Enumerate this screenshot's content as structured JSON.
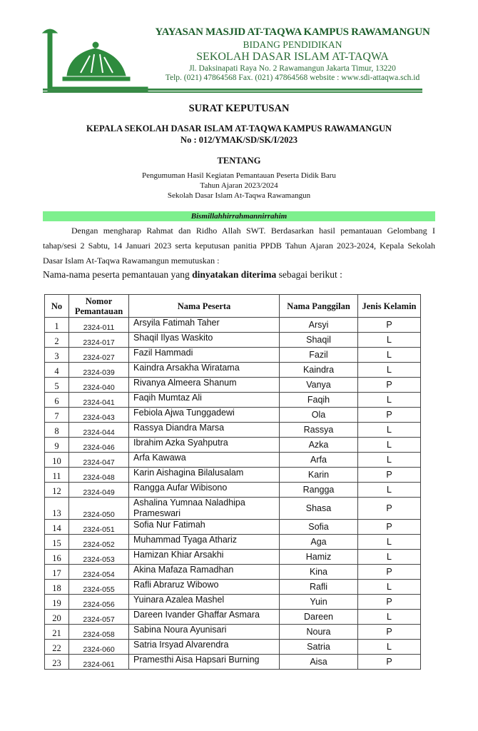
{
  "letterhead": {
    "line1": "YAYASAN MASJID AT-TAQWA KAMPUS RAWAMANGUN",
    "line2": "BIDANG PENDIDIKAN",
    "line3": "SEKOLAH DASAR ISLAM AT-TAQWA",
    "address": "Jl. Daksinapati Raya No. 2 Rawamangun Jakarta Timur, 13220",
    "contact": "Telp. (021) 47864568 Fax. (021) 47864568 website : www.sdi-attaqwa.sch.id",
    "logo_color": "#2e8b3e"
  },
  "title": "SURAT KEPUTUSAN",
  "issuer": "KEPALA SEKOLAH DASAR ISLAM AT-TAQWA KAMPUS RAWAMANGUN",
  "number": "No : 012/YMAK/SD/SK/I/2023",
  "about_label": "TENTANG",
  "about_lines": [
    "Pengumuman Hasil Kegiatan Pemantauan Peserta Didik Baru",
    "Tahun Ajaran 2023/2024",
    "Sekolah Dasar Islam At-Taqwa Rawamangun"
  ],
  "bismillah": "Bismillahhirrahmannirrahim",
  "bismillah_bg": "#7ef08e",
  "paragraph": "Dengan mengharap Rahmat dan Ridho Allah SWT. Berdasarkan hasil pemantauan Gelombang I tahap/sesi 2  Sabtu, 14 Januari 2023 serta keputusan panitia PPDB Tahun Ajaran 2023-2024, Kepala Sekolah Dasar Islam At-Taqwa Rawamangun memutuskan :",
  "intro": {
    "before": "Nama-nama peserta pemantauan yang ",
    "bold": "dinyatakan diterima",
    "after": " sebagai berikut :"
  },
  "table": {
    "headers": [
      "No",
      "Nomor Pemantauan",
      "Nama Peserta",
      "Nama Panggilan",
      "Jenis Kelamin"
    ],
    "rows": [
      [
        "1",
        "2324-011",
        "Arsyila Fatimah Taher",
        "Arsyi",
        "P"
      ],
      [
        "2",
        "2324-017",
        "Shaqil Ilyas Waskito",
        "Shaqil",
        "L"
      ],
      [
        "3",
        "2324-027",
        "Fazil Hammadi",
        "Fazil",
        "L"
      ],
      [
        "4",
        "2324-039",
        "Kaindra Arsakha Wiratama",
        "Kaindra",
        "L"
      ],
      [
        "5",
        "2324-040",
        "Rivanya Almeera Shanum",
        "Vanya",
        "P"
      ],
      [
        "6",
        "2324-041",
        "Faqih Mumtaz Ali",
        "Faqih",
        "L"
      ],
      [
        "7",
        "2324-043",
        "Febiola Ajwa Tunggadewi",
        "Ola",
        "P"
      ],
      [
        "8",
        "2324-044",
        "Rassya Diandra Marsa",
        "Rassya",
        "L"
      ],
      [
        "9",
        "2324-046",
        "Ibrahim Azka Syahputra",
        "Azka",
        "L"
      ],
      [
        "10",
        "2324-047",
        "Arfa Kawawa",
        "Arfa",
        "L"
      ],
      [
        "11",
        "2324-048",
        "Karin Aishagina Bilalusalam",
        "Karin",
        "P"
      ],
      [
        "12",
        "2324-049",
        "Rangga Aufar Wibisono",
        "Rangga",
        "L"
      ],
      [
        "13",
        "2324-050",
        "Ashalina Yumnaa Naladhipa Prameswari",
        "Shasa",
        "P"
      ],
      [
        "14",
        "2324-051",
        "Sofia Nur Fatimah",
        "Sofia",
        "P"
      ],
      [
        "15",
        "2324-052",
        "Muhammad Tyaga Athariz",
        "Aga",
        "L"
      ],
      [
        "16",
        "2324-053",
        "Hamizan Khiar Arsakhi",
        "Hamiz",
        "L"
      ],
      [
        "17",
        "2324-054",
        "Akina Mafaza Ramadhan",
        "Kina",
        "P"
      ],
      [
        "18",
        "2324-055",
        "Rafli Abraruz Wibowo",
        "Rafli",
        "L"
      ],
      [
        "19",
        "2324-056",
        "Yuinara Azalea Mashel",
        "Yuin",
        "P"
      ],
      [
        "20",
        "2324-057",
        "Dareen Ivander Ghaffar Asmara",
        "Dareen",
        "L"
      ],
      [
        "21",
        "2324-058",
        "Sabina Noura Ayunisari",
        "Noura",
        "P"
      ],
      [
        "22",
        "2324-060",
        "Satria Irsyad Alvarendra",
        "Satria",
        "L"
      ],
      [
        "23",
        "2324-061",
        "Pramesthi Aisa Hapsari Burning",
        "Aisa",
        "P"
      ]
    ]
  }
}
